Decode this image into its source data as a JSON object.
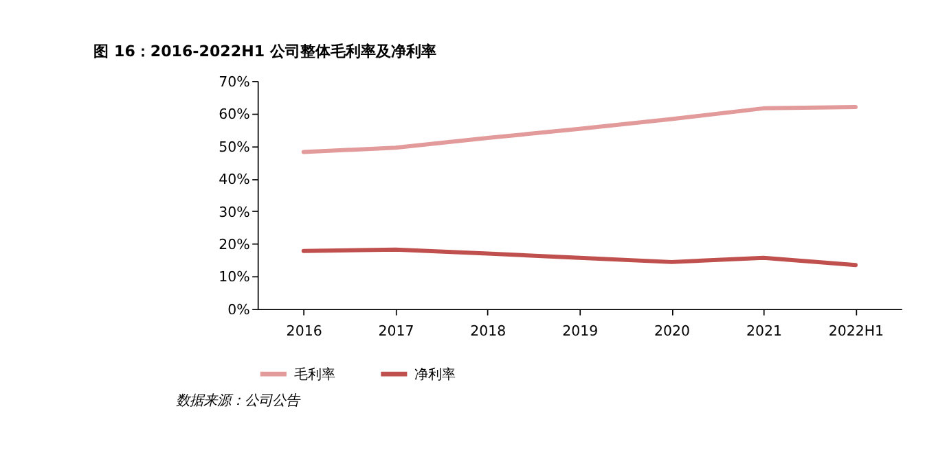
{
  "chart_data": {
    "type": "line",
    "title": "图 16：2016-2022H1 公司整体毛利率及净利率",
    "categories": [
      "2016",
      "2017",
      "2018",
      "2019",
      "2020",
      "2021",
      "2022H1"
    ],
    "series": [
      {
        "name": "毛利率",
        "color": "#e39a9a",
        "values": [
          48.2,
          49.5,
          52.5,
          55.3,
          58.3,
          61.6,
          62.0
        ]
      },
      {
        "name": "净利率",
        "color": "#c0504d",
        "values": [
          17.8,
          18.2,
          17.0,
          15.7,
          14.4,
          15.7,
          13.5
        ]
      }
    ],
    "ylim": [
      0,
      70
    ],
    "yticks": [
      {
        "value": 0,
        "label": "0%"
      },
      {
        "value": 10,
        "label": "10%"
      },
      {
        "value": 20,
        "label": "20%"
      },
      {
        "value": 30,
        "label": "30%"
      },
      {
        "value": 40,
        "label": "40%"
      },
      {
        "value": 50,
        "label": "50%"
      },
      {
        "value": 60,
        "label": "60%"
      },
      {
        "value": 70,
        "label": "70%"
      }
    ],
    "grid": false,
    "legend": "bottom",
    "marker": "none",
    "line_style": "solid",
    "annotations": [
      "数据来源：公司公告"
    ]
  }
}
